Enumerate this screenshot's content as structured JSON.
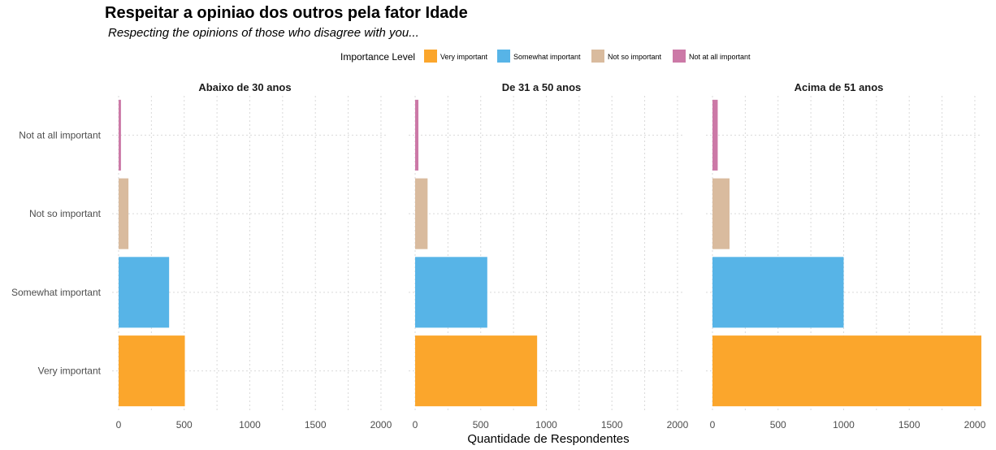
{
  "chart_data": {
    "type": "bar",
    "orientation": "horizontal",
    "title": "Respeitar a opiniao dos outros pela fator Idade",
    "subtitle": "Respecting the opinions of those who disagree with you...",
    "xlabel": "Quantidade de Respondentes",
    "ylabel": "",
    "legend": {
      "title": "Importance Level",
      "placement": "top",
      "entries": [
        {
          "label": "Very important",
          "color": "#FBA62C"
        },
        {
          "label": "Somewhat important",
          "color": "#57B4E7"
        },
        {
          "label": "Not so important",
          "color": "#D9BB9E"
        },
        {
          "label": "Not at all important",
          "color": "#CC79A7"
        }
      ]
    },
    "categories": [
      "Very important",
      "Somewhat important",
      "Not so important",
      "Not at all important"
    ],
    "xlim": [
      0,
      2050
    ],
    "xticks": [
      0,
      500,
      1000,
      1500,
      2000
    ],
    "xtick_labels": [
      "0",
      "500",
      "1000",
      "1500",
      "2000"
    ],
    "grid": true,
    "facets": [
      {
        "title": "Abaixo de 30 anos",
        "values": [
          505,
          385,
          75,
          18
        ]
      },
      {
        "title": "De 31 a 50 anos",
        "values": [
          930,
          550,
          95,
          25
        ]
      },
      {
        "title": "Acima de 51 anos",
        "values": [
          2050,
          1000,
          130,
          40
        ]
      }
    ]
  }
}
